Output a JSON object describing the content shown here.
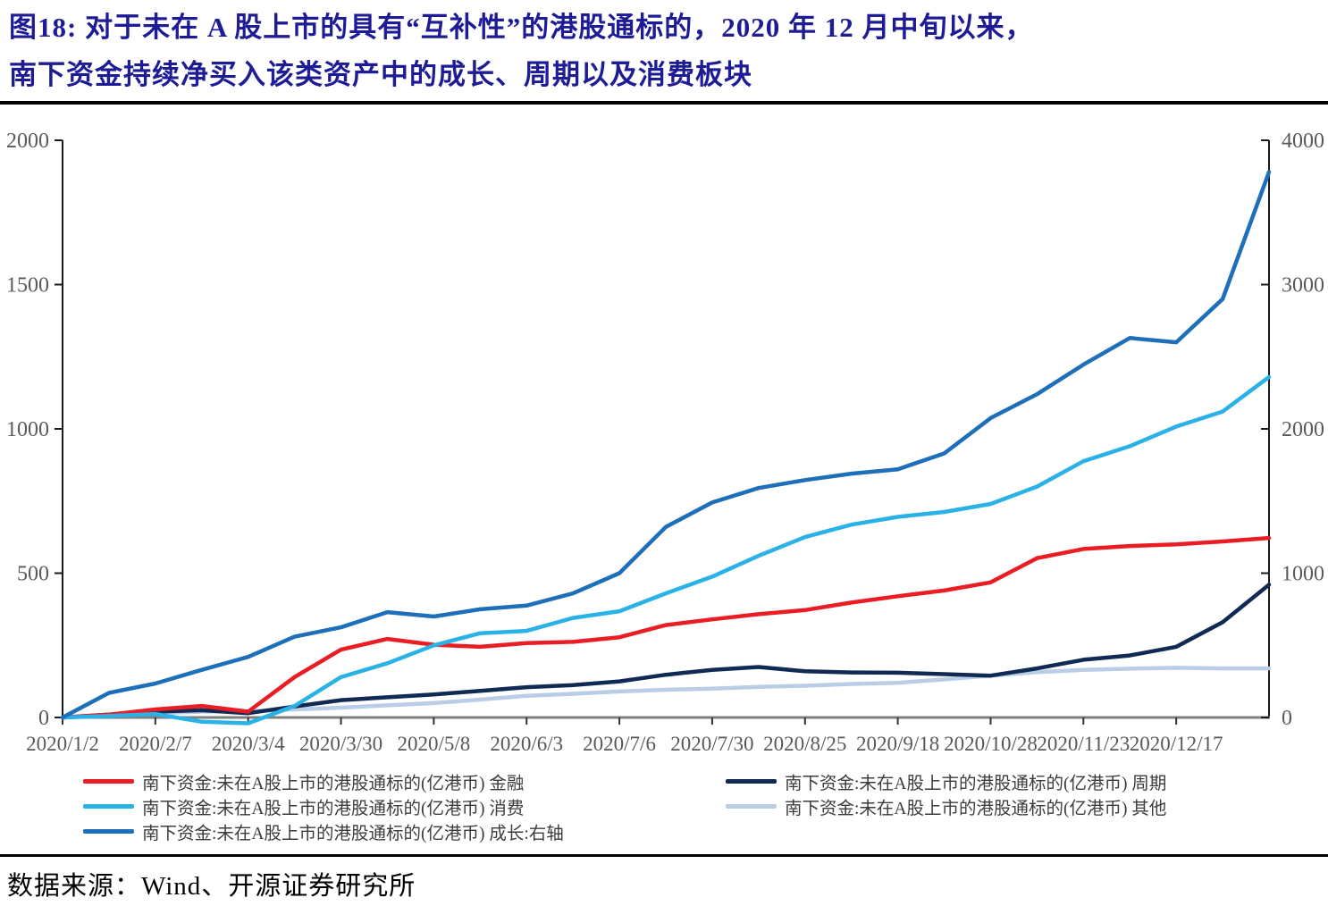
{
  "title": {
    "line1": "图18:  对于未在 A 股上市的具有“互补性”的港股通标的，2020 年 12 月中旬以来，",
    "line2": "南下资金持续净买入该类资产中的成长、周期以及消费板块"
  },
  "source_note": "数据来源：Wind、开源证券研究所",
  "colors": {
    "title_navy": "#1e1b96",
    "axis_label_gray": "#595959",
    "bottom_axis_gray": "#7f7f7f",
    "legend_text": "#3c3c3c"
  },
  "chart_data": {
    "type": "line",
    "title": "",
    "grid": false,
    "legend_position": "bottom-two-columns",
    "x_tick_labels": [
      "2020/1/2",
      "2020/2/7",
      "2020/3/4",
      "2020/3/30",
      "2020/5/8",
      "2020/6/3",
      "2020/7/6",
      "2020/7/30",
      "2020/8/25",
      "2020/9/18",
      "2020/10/28",
      "2020/11/23",
      "2020/12/17"
    ],
    "left_axis": {
      "min": 0,
      "max": 2000,
      "ticks": [
        0,
        500,
        1000,
        1500,
        2000
      ],
      "unit": "亿港币"
    },
    "right_axis": {
      "min": 0,
      "max": 4000,
      "ticks": [
        0,
        1000,
        2000,
        3000,
        4000
      ],
      "unit": "亿港币"
    },
    "sample_dates": [
      "2020/1/2",
      "2020/1/16",
      "2020/2/7",
      "2020/2/21",
      "2020/3/4",
      "2020/3/17",
      "2020/3/30",
      "2020/4/17",
      "2020/5/8",
      "2020/5/21",
      "2020/6/3",
      "2020/6/18",
      "2020/7/6",
      "2020/7/17",
      "2020/7/30",
      "2020/8/11",
      "2020/8/25",
      "2020/9/7",
      "2020/9/18",
      "2020/10/9",
      "2020/10/28",
      "2020/11/10",
      "2020/11/23",
      "2020/12/4",
      "2020/12/17",
      "2020/12/30",
      "2021/1/15"
    ],
    "series": [
      {
        "key": "finance",
        "name": "南下资金:未在A股上市的港股通标的(亿港币) 金融",
        "axis": "left",
        "color": "#ea1c24",
        "values": [
          0,
          10,
          28,
          40,
          20,
          140,
          235,
          272,
          252,
          245,
          258,
          262,
          278,
          320,
          340,
          358,
          372,
          398,
          420,
          440,
          468,
          552,
          584,
          594,
          600,
          610,
          622
        ]
      },
      {
        "key": "consumer",
        "name": "南下资金:未在A股上市的港股通标的(亿港币) 消费",
        "axis": "left",
        "color": "#2ab2e7",
        "values": [
          0,
          5,
          12,
          -15,
          -20,
          40,
          140,
          188,
          250,
          292,
          300,
          345,
          368,
          430,
          488,
          560,
          625,
          668,
          695,
          712,
          740,
          800,
          888,
          940,
          1008,
          1060,
          1180
        ]
      },
      {
        "key": "growth",
        "name": "南下资金:未在A股上市的港股通标的(亿港币) 成长:右轴",
        "axis": "right",
        "color": "#1c6fb8",
        "values": [
          0,
          170,
          235,
          330,
          420,
          560,
          625,
          730,
          700,
          750,
          775,
          860,
          1000,
          1320,
          1490,
          1590,
          1645,
          1690,
          1720,
          1830,
          2075,
          2240,
          2445,
          2630,
          2600,
          2900,
          3780
        ]
      },
      {
        "key": "cyclical",
        "name": "南下资金:未在A股上市的港股通标的(亿港币) 周期",
        "axis": "left",
        "color": "#112a54",
        "values": [
          0,
          10,
          20,
          25,
          15,
          38,
          60,
          70,
          80,
          92,
          105,
          112,
          125,
          148,
          165,
          175,
          160,
          156,
          155,
          150,
          145,
          170,
          200,
          215,
          245,
          330,
          460
        ]
      },
      {
        "key": "other",
        "name": "南下资金:未在A股上市的港股通标的(亿港币) 其他",
        "axis": "left",
        "color": "#b9cde6",
        "values": [
          0,
          8,
          15,
          20,
          22,
          28,
          34,
          42,
          50,
          62,
          75,
          82,
          90,
          96,
          100,
          106,
          110,
          116,
          120,
          132,
          145,
          157,
          165,
          169,
          172,
          170,
          170
        ]
      }
    ]
  }
}
